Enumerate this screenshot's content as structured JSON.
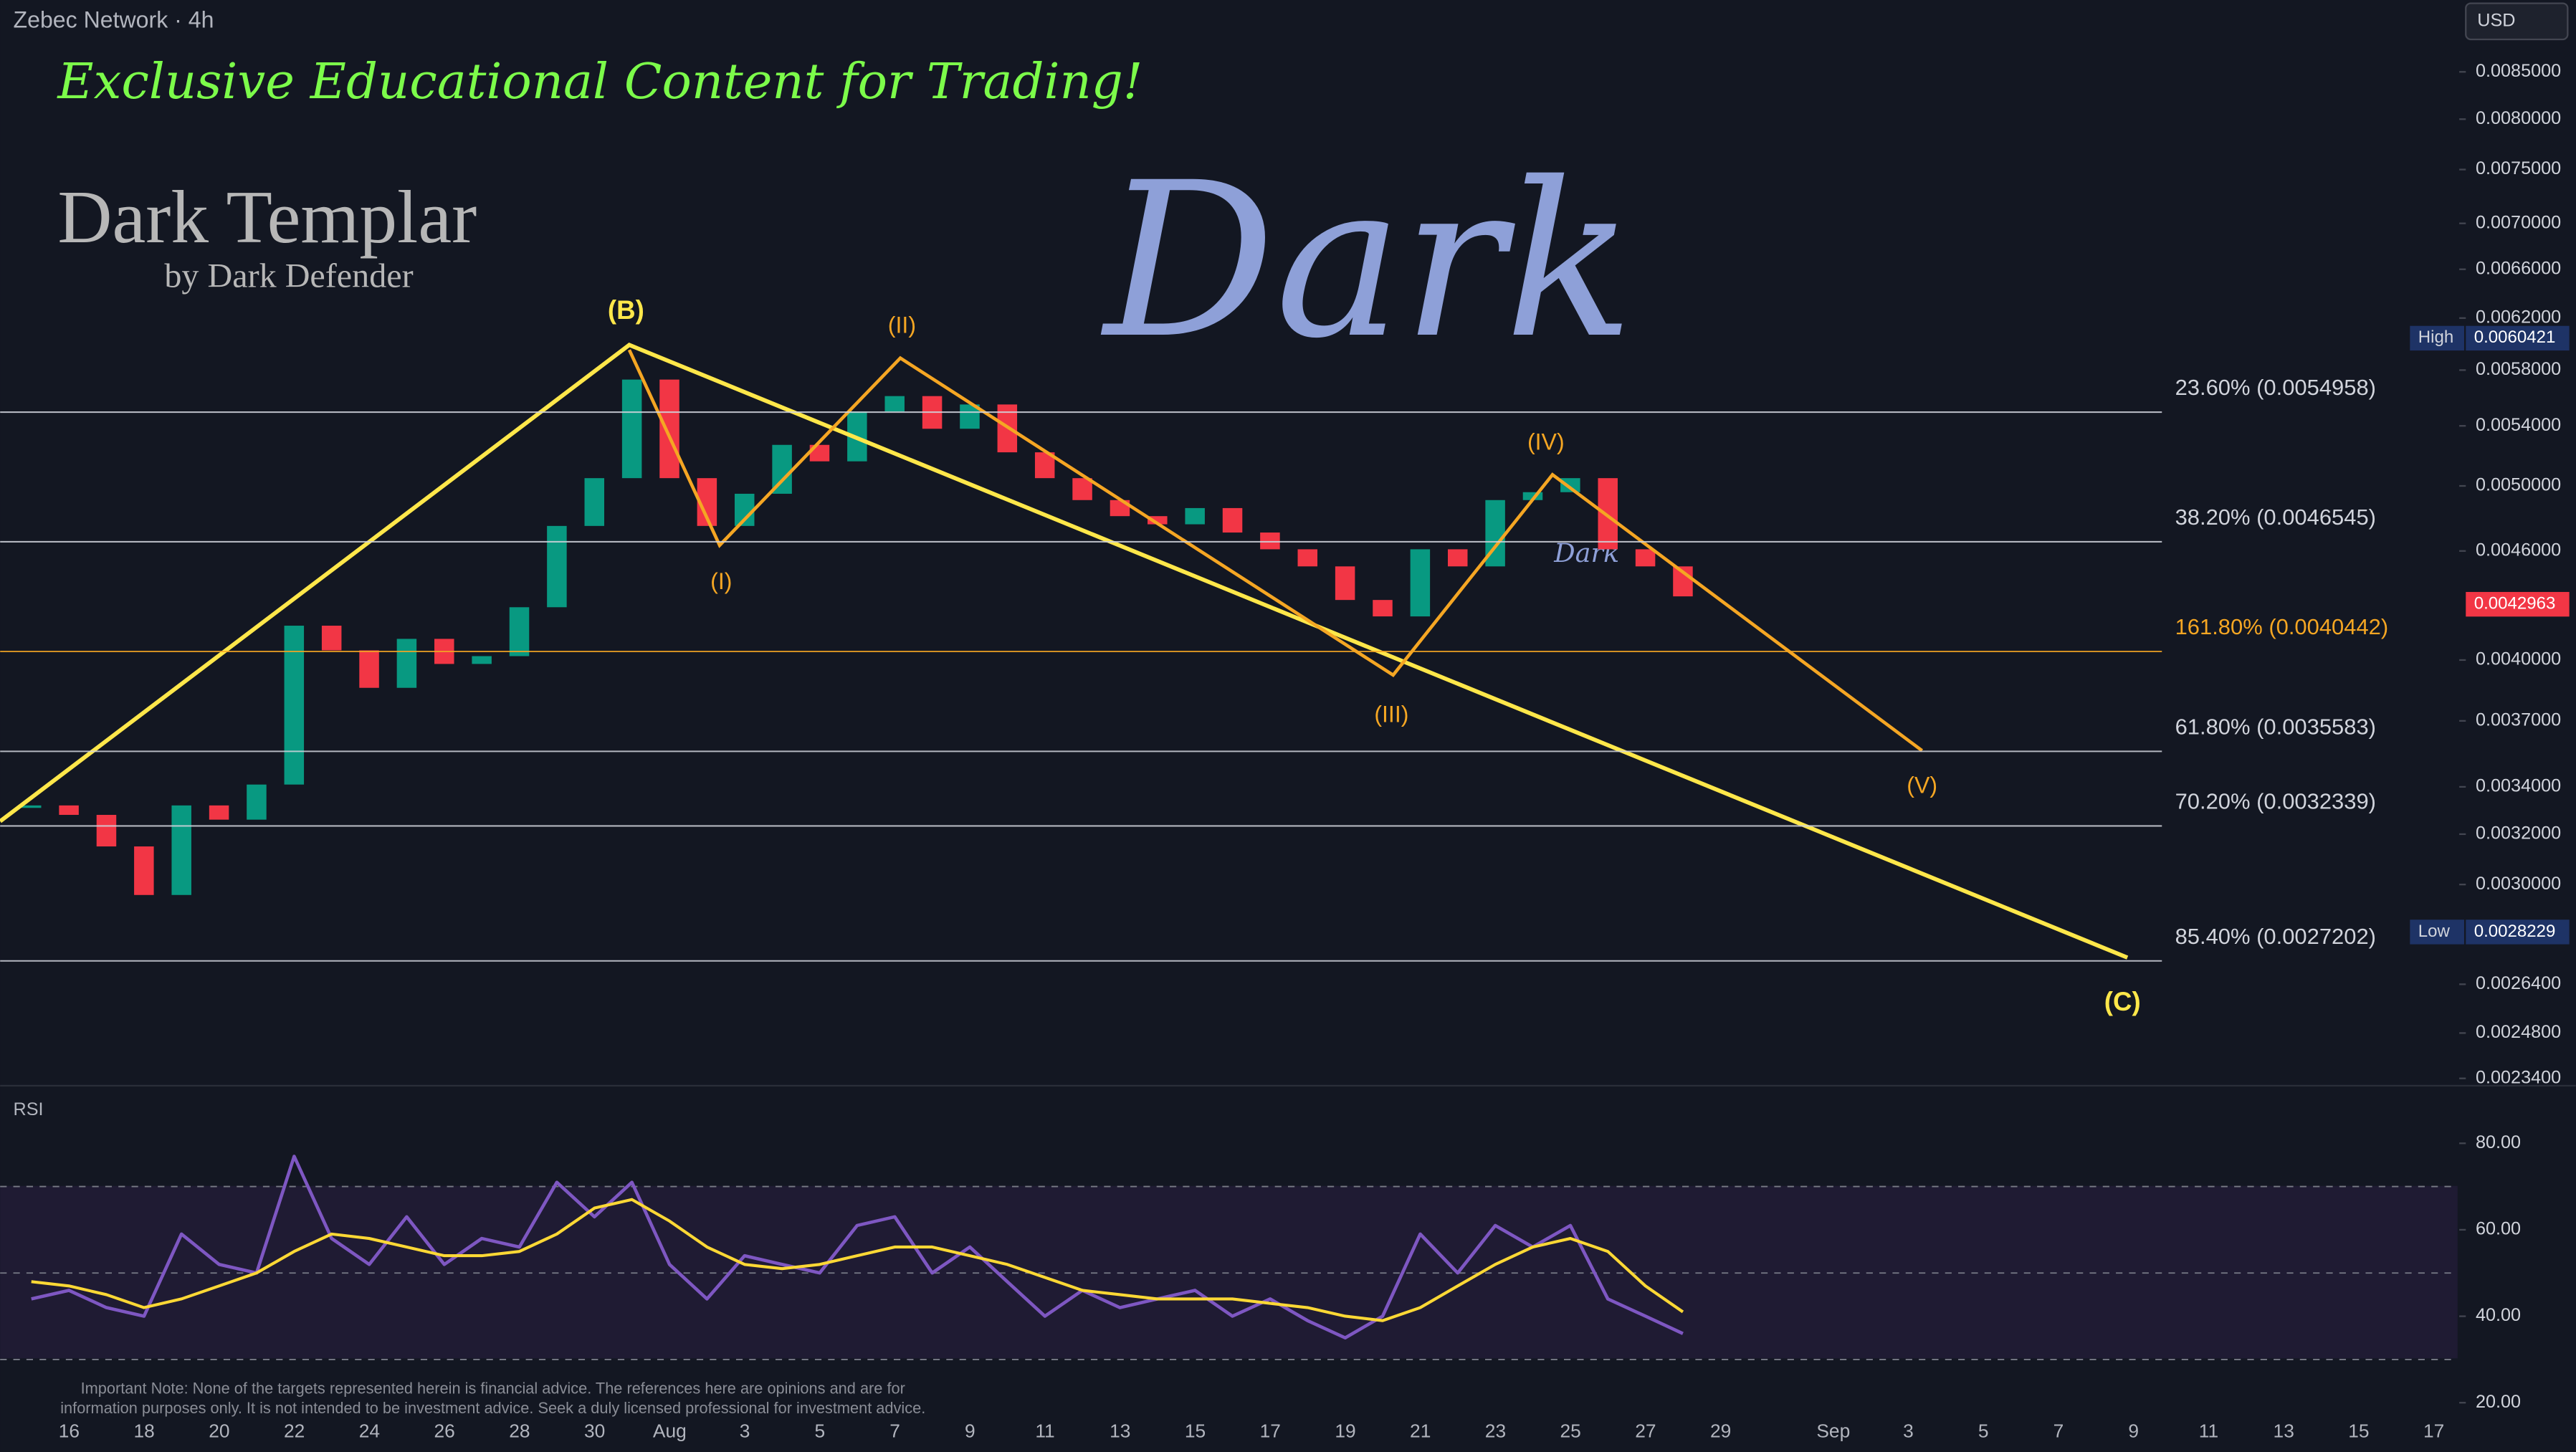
{
  "header": {
    "symbol": "Zebec Network · 4h",
    "currency": "USD",
    "pane_label": "RSI"
  },
  "overlay": {
    "tagline": "Exclusive Educational Content for Trading!",
    "brand": "Dark Templar",
    "brand_sub": "by Dark Defender",
    "watermark": "Dark",
    "watermark_small": "Dark",
    "disclaimer": [
      "Important Note: None of the targets represented herein is financial advice. The references here are opinions and are for",
      "information purposes only. It is not intended to be investment advice. Seek a duly licensed professional for investment advice."
    ],
    "wave_labels": [
      "(B)",
      "(C)",
      "(I)",
      "(II)",
      "(III)",
      "(IV)",
      "(V)"
    ]
  },
  "chart_data": [
    {
      "type": "candlestick",
      "log_scale": true,
      "ylim": [
        0.002323,
        0.00932
      ],
      "yticks": [
        {
          "value": 0.0085,
          "label": "0.0085000"
        },
        {
          "value": 0.008,
          "label": "0.0080000"
        },
        {
          "value": 0.0075,
          "label": "0.0075000"
        },
        {
          "value": 0.007,
          "label": "0.0070000"
        },
        {
          "value": 0.0066,
          "label": "0.0066000"
        },
        {
          "value": 0.0062,
          "label": "0.0062000"
        },
        {
          "value": 0.0058,
          "label": "0.0058000"
        },
        {
          "value": 0.0054,
          "label": "0.0054000"
        },
        {
          "value": 0.005,
          "label": "0.0050000"
        },
        {
          "value": 0.0046,
          "label": "0.0046000"
        },
        {
          "value": 0.004,
          "label": "0.0040000"
        },
        {
          "value": 0.0037,
          "label": "0.0037000"
        },
        {
          "value": 0.0034,
          "label": "0.0034000"
        },
        {
          "value": 0.0032,
          "label": "0.0032000"
        },
        {
          "value": 0.003,
          "label": "0.0030000"
        },
        {
          "value": 0.00264,
          "label": "0.0026400"
        },
        {
          "value": 0.00248,
          "label": "0.0024800"
        },
        {
          "value": 0.00234,
          "label": "0.0023400"
        }
      ],
      "x_axis_labels": [
        "16",
        "18",
        "20",
        "22",
        "24",
        "26",
        "28",
        "30",
        "Aug",
        "3",
        "5",
        "7",
        "9",
        "11",
        "13",
        "15",
        "17",
        "19",
        "21",
        "23",
        "25",
        "27",
        "29",
        "Sep",
        "3",
        "5",
        "7",
        "9",
        "11",
        "13",
        "15",
        "17"
      ],
      "series": [
        {
          "name": "Close",
          "up_color": "#089981",
          "down_color": "#f23645",
          "values": [
            0.00332,
            0.00328,
            0.00315,
            0.00296,
            0.00332,
            0.00326,
            0.00341,
            0.00418,
            0.00405,
            0.00386,
            0.00411,
            0.00398,
            0.00402,
            0.00428,
            0.00475,
            0.00505,
            0.00573,
            0.00505,
            0.00475,
            0.00495,
            0.00527,
            0.00516,
            0.0055,
            0.00561,
            0.00538,
            0.00555,
            0.00522,
            0.00505,
            0.00491,
            0.00481,
            0.00476,
            0.00486,
            0.00471,
            0.00461,
            0.00451,
            0.00432,
            0.00423,
            0.00461,
            0.00451,
            0.00491,
            0.00496,
            0.00505,
            0.00461,
            0.00451,
            0.00434
          ]
        }
      ],
      "fib_levels": [
        {
          "label": "23.60% (0.0054958)",
          "value": 0.0054958,
          "color": "#d1d4dc"
        },
        {
          "label": "38.20% (0.0046545)",
          "value": 0.0046545,
          "color": "#d1d4dc"
        },
        {
          "label": "161.80% (0.0040442)",
          "value": 0.0040442,
          "color": "#f5a623"
        },
        {
          "label": "61.80% (0.0035583)",
          "value": 0.0035583,
          "color": "#d1d4dc"
        },
        {
          "label": "70.20% (0.0032339)",
          "value": 0.0032339,
          "color": "#d1d4dc"
        },
        {
          "label": "85.40% (0.0027202)",
          "value": 0.0027202,
          "color": "#d1d4dc"
        }
      ],
      "price_markers": [
        {
          "label": "High",
          "value": 0.0060421,
          "color": "#1e3366"
        },
        {
          "value": 0.0042963,
          "color": "#f23645"
        },
        {
          "label": "Low",
          "value": 0.0028229,
          "color": "#1e3366"
        }
      ]
    },
    {
      "type": "line",
      "ylim": [
        8.6,
        93.7
      ],
      "yticks": [
        {
          "value": 80,
          "label": "80.00"
        },
        {
          "value": 60,
          "label": "60.00"
        },
        {
          "value": 40,
          "label": "40.00"
        },
        {
          "value": 20,
          "label": "20.00"
        }
      ],
      "band_levels": [
        30,
        50,
        70
      ],
      "series": [
        {
          "name": "RSI",
          "color": "#7e57c2",
          "values": [
            44,
            46,
            42,
            40,
            59,
            52,
            50,
            77,
            58,
            52,
            63,
            52,
            58,
            56,
            71,
            63,
            71,
            52,
            44,
            54,
            52,
            50,
            61,
            63,
            50,
            56,
            48,
            40,
            46,
            42,
            44,
            46,
            40,
            44,
            39,
            35,
            40,
            59,
            50,
            61,
            56,
            61,
            44,
            40,
            36
          ]
        },
        {
          "name": "RSI MA",
          "color": "#fdd835",
          "values": [
            48,
            47,
            45,
            42,
            44,
            47,
            50,
            55,
            59,
            58,
            56,
            54,
            54,
            55,
            59,
            65,
            67,
            62,
            56,
            52,
            51,
            52,
            54,
            56,
            56,
            54,
            52,
            49,
            46,
            45,
            44,
            44,
            44,
            43,
            42,
            40,
            39,
            42,
            47,
            52,
            56,
            58,
            55,
            47,
            41
          ]
        }
      ]
    }
  ]
}
